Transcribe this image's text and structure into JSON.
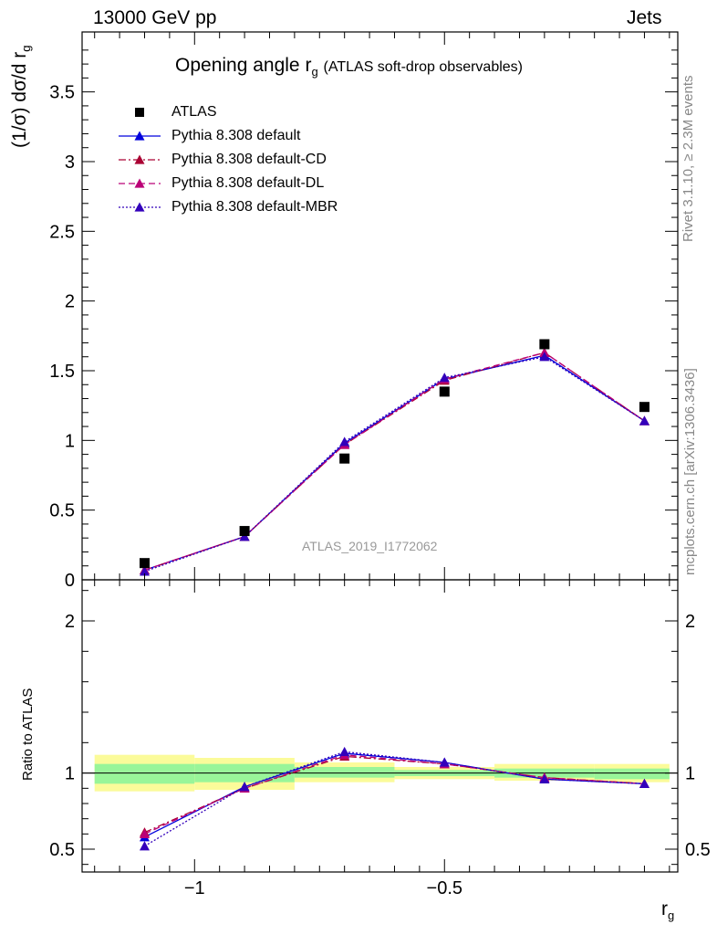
{
  "header": {
    "left": "13000 GeV pp",
    "right": "Jets"
  },
  "title": {
    "main_prefix": "Opening angle r",
    "main_sub": "g",
    "secondary": "(ATLAS soft-drop observables)"
  },
  "watermark_analysis": "ATLAS_2019_I1772062",
  "side_text": {
    "rivet": "Rivet 3.1.10, ≥ 2.3M events",
    "mcplots": "mcplots.cern.ch [arXiv:1306.3436]"
  },
  "axes": {
    "upper_ylabel": "(1/σ) dσ/d r",
    "upper_ylabel_sub": "g",
    "lower_ylabel": "Ratio to ATLAS",
    "xlabel": "r",
    "xlabel_sub": "g"
  },
  "colors": {
    "data": "#000000",
    "default": "#0000dd",
    "cd": "#aa0033",
    "dl": "#bb0077",
    "mbr": "#3300bb",
    "band_inner": "#99f599",
    "band_outer": "#fbfb9a"
  },
  "chart_data": {
    "type": "scatter",
    "x": [
      -1.1,
      -0.9,
      -0.7,
      -0.5,
      -0.3,
      -0.1
    ],
    "xlim": [
      -1.225,
      -0.0333
    ],
    "upper": {
      "ylim": [
        0,
        3.93
      ],
      "yticks": [
        0,
        0.5,
        1,
        1.5,
        2,
        2.5,
        3,
        3.5
      ],
      "ytick_labels": [
        "0",
        "0.5",
        "1",
        "1.5",
        "2",
        "2.5",
        "3",
        "3.5"
      ],
      "data": {
        "name": "ATLAS",
        "values": [
          0.12,
          0.35,
          0.87,
          1.35,
          1.69,
          1.24
        ]
      },
      "series": [
        {
          "name": "Pythia 8.308 default",
          "key": "default",
          "values": [
            0.07,
            0.31,
            0.98,
            1.44,
            1.61,
            1.14
          ]
        },
        {
          "name": "Pythia 8.308 default-CD",
          "key": "cd",
          "values": [
            0.07,
            0.31,
            0.97,
            1.43,
            1.63,
            1.14
          ]
        },
        {
          "name": "Pythia 8.308 default-DL",
          "key": "dl",
          "values": [
            0.07,
            0.31,
            0.97,
            1.44,
            1.63,
            1.14
          ]
        },
        {
          "name": "Pythia 8.308 default-MBR",
          "key": "mbr",
          "values": [
            0.06,
            0.31,
            0.99,
            1.45,
            1.6,
            1.14
          ]
        }
      ]
    },
    "lower": {
      "ylim": [
        0.35,
        2.27
      ],
      "yticks": [
        0.5,
        1,
        2
      ],
      "ytick_labels": [
        "0.5",
        "1",
        "2"
      ],
      "bands": [
        {
          "x0": -1.2,
          "x1": -1.0,
          "outer": [
            0.88,
            1.12
          ],
          "inner": [
            0.93,
            1.06
          ]
        },
        {
          "x0": -1.0,
          "x1": -0.8,
          "outer": [
            0.89,
            1.1
          ],
          "inner": [
            0.94,
            1.06
          ]
        },
        {
          "x0": -0.8,
          "x1": -0.6,
          "outer": [
            0.94,
            1.07
          ],
          "inner": [
            0.97,
            1.04
          ]
        },
        {
          "x0": -0.6,
          "x1": -0.4,
          "outer": [
            0.96,
            1.04
          ],
          "inner": [
            0.98,
            1.02
          ]
        },
        {
          "x0": -0.4,
          "x1": -0.2,
          "outer": [
            0.95,
            1.06
          ],
          "inner": [
            0.97,
            1.03
          ]
        },
        {
          "x0": -0.2,
          "x1": -0.05,
          "outer": [
            0.94,
            1.06
          ],
          "inner": [
            0.96,
            1.03
          ]
        }
      ],
      "series": [
        {
          "name": "Pythia 8.308 default",
          "key": "default",
          "values": [
            0.58,
            0.91,
            1.13,
            1.07,
            0.96,
            0.93
          ]
        },
        {
          "name": "Pythia 8.308 default-CD",
          "key": "cd",
          "values": [
            0.61,
            0.9,
            1.11,
            1.06,
            0.97,
            0.93
          ]
        },
        {
          "name": "Pythia 8.308 default-DL",
          "key": "dl",
          "values": [
            0.6,
            0.9,
            1.12,
            1.06,
            0.97,
            0.93
          ]
        },
        {
          "name": "Pythia 8.308 default-MBR",
          "key": "mbr",
          "values": [
            0.52,
            0.91,
            1.14,
            1.07,
            0.96,
            0.93
          ]
        }
      ]
    },
    "xticks_major": [
      -1,
      -0.5
    ],
    "xtick_labels": [
      "−1",
      "−0.5"
    ]
  },
  "legend": [
    {
      "key": "data",
      "label": "ATLAS"
    },
    {
      "key": "default",
      "label": "Pythia 8.308 default"
    },
    {
      "key": "cd",
      "label": "Pythia 8.308 default-CD"
    },
    {
      "key": "dl",
      "label": "Pythia 8.308 default-DL"
    },
    {
      "key": "mbr",
      "label": "Pythia 8.308 default-MBR"
    }
  ]
}
